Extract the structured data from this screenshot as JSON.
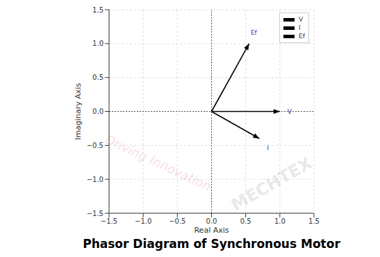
{
  "chart_data": {
    "type": "line",
    "title": "Phasor Diagram of Synchronous Motor",
    "x_label": "Real Axis",
    "y_label": "Imaginary Axis",
    "series": [
      {
        "name": "V",
        "color": "#000000",
        "x": [
          0,
          1.0
        ],
        "values": [
          0,
          0
        ]
      },
      {
        "name": "I",
        "color": "#000000",
        "x": [
          0,
          0.7
        ],
        "values": [
          0,
          -0.4
        ]
      },
      {
        "name": "Ef",
        "color": "#000000",
        "x": [
          0,
          0.55
        ],
        "values": [
          0,
          1.0
        ]
      }
    ],
    "annotations": [
      "V",
      "I",
      "Ef"
    ],
    "xlim": [
      -1.5,
      1.5
    ],
    "ylim": [
      -1.5,
      1.5
    ],
    "xticks": [
      {
        "value": -1.5,
        "label": "−1.5"
      },
      {
        "value": -1.0,
        "label": "−1.0"
      },
      {
        "value": -0.5,
        "label": "−0.5"
      },
      {
        "value": 0,
        "label": "0.0"
      },
      0.5,
      {
        "value": 1.0,
        "label": "1.0"
      },
      1.5
    ],
    "yticks": [
      {
        "value": -1.5,
        "label": "−1.5"
      },
      {
        "value": -1.0,
        "label": "−1.0"
      },
      {
        "value": -0.5,
        "label": "−0.5"
      },
      {
        "value": 0,
        "label": "0.0"
      },
      0.5,
      {
        "value": 1.0,
        "label": "1.0"
      },
      1.5
    ],
    "grid": true,
    "legend": "upper right",
    "marker": "arrow",
    "watermark": [
      "MECHTEX",
      "Driving Innovation"
    ]
  }
}
